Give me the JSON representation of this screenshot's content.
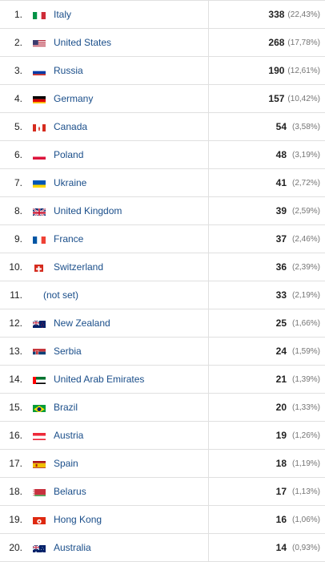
{
  "rows": [
    {
      "rank": "1.",
      "flag": "it-flag-icon",
      "country": "Italy",
      "count": "338",
      "pct": "(22,43%)"
    },
    {
      "rank": "2.",
      "flag": "us-flag-icon",
      "country": "United States",
      "count": "268",
      "pct": "(17,78%)"
    },
    {
      "rank": "3.",
      "flag": "ru-flag-icon",
      "country": "Russia",
      "count": "190",
      "pct": "(12,61%)"
    },
    {
      "rank": "4.",
      "flag": "de-flag-icon",
      "country": "Germany",
      "count": "157",
      "pct": "(10,42%)"
    },
    {
      "rank": "5.",
      "flag": "ca-flag-icon",
      "country": "Canada",
      "count": "54",
      "pct": "(3,58%)"
    },
    {
      "rank": "6.",
      "flag": "pl-flag-icon",
      "country": "Poland",
      "count": "48",
      "pct": "(3,19%)"
    },
    {
      "rank": "7.",
      "flag": "ua-flag-icon",
      "country": "Ukraine",
      "count": "41",
      "pct": "(2,72%)"
    },
    {
      "rank": "8.",
      "flag": "gb-flag-icon",
      "country": "United Kingdom",
      "count": "39",
      "pct": "(2,59%)"
    },
    {
      "rank": "9.",
      "flag": "fr-flag-icon",
      "country": "France",
      "count": "37",
      "pct": "(2,46%)"
    },
    {
      "rank": "10.",
      "flag": "ch-flag-icon",
      "country": "Switzerland",
      "count": "36",
      "pct": "(2,39%)"
    },
    {
      "rank": "11.",
      "flag": "",
      "country": "(not set)",
      "count": "33",
      "pct": "(2,19%)"
    },
    {
      "rank": "12.",
      "flag": "nz-flag-icon",
      "country": "New Zealand",
      "count": "25",
      "pct": "(1,66%)"
    },
    {
      "rank": "13.",
      "flag": "rs-flag-icon",
      "country": "Serbia",
      "count": "24",
      "pct": "(1,59%)"
    },
    {
      "rank": "14.",
      "flag": "ae-flag-icon",
      "country": "United Arab Emirates",
      "count": "21",
      "pct": "(1,39%)"
    },
    {
      "rank": "15.",
      "flag": "br-flag-icon",
      "country": "Brazil",
      "count": "20",
      "pct": "(1,33%)"
    },
    {
      "rank": "16.",
      "flag": "at-flag-icon",
      "country": "Austria",
      "count": "19",
      "pct": "(1,26%)"
    },
    {
      "rank": "17.",
      "flag": "es-flag-icon",
      "country": "Spain",
      "count": "18",
      "pct": "(1,19%)"
    },
    {
      "rank": "18.",
      "flag": "by-flag-icon",
      "country": "Belarus",
      "count": "17",
      "pct": "(1,13%)"
    },
    {
      "rank": "19.",
      "flag": "hk-flag-icon",
      "country": "Hong Kong",
      "count": "16",
      "pct": "(1,06%)"
    },
    {
      "rank": "20.",
      "flag": "au-flag-icon",
      "country": "Australia",
      "count": "14",
      "pct": "(0,93%)"
    }
  ],
  "colors": {
    "link": "#1a4e8a",
    "text": "#212121",
    "muted": "#757575",
    "border": "#e0e0e0"
  }
}
